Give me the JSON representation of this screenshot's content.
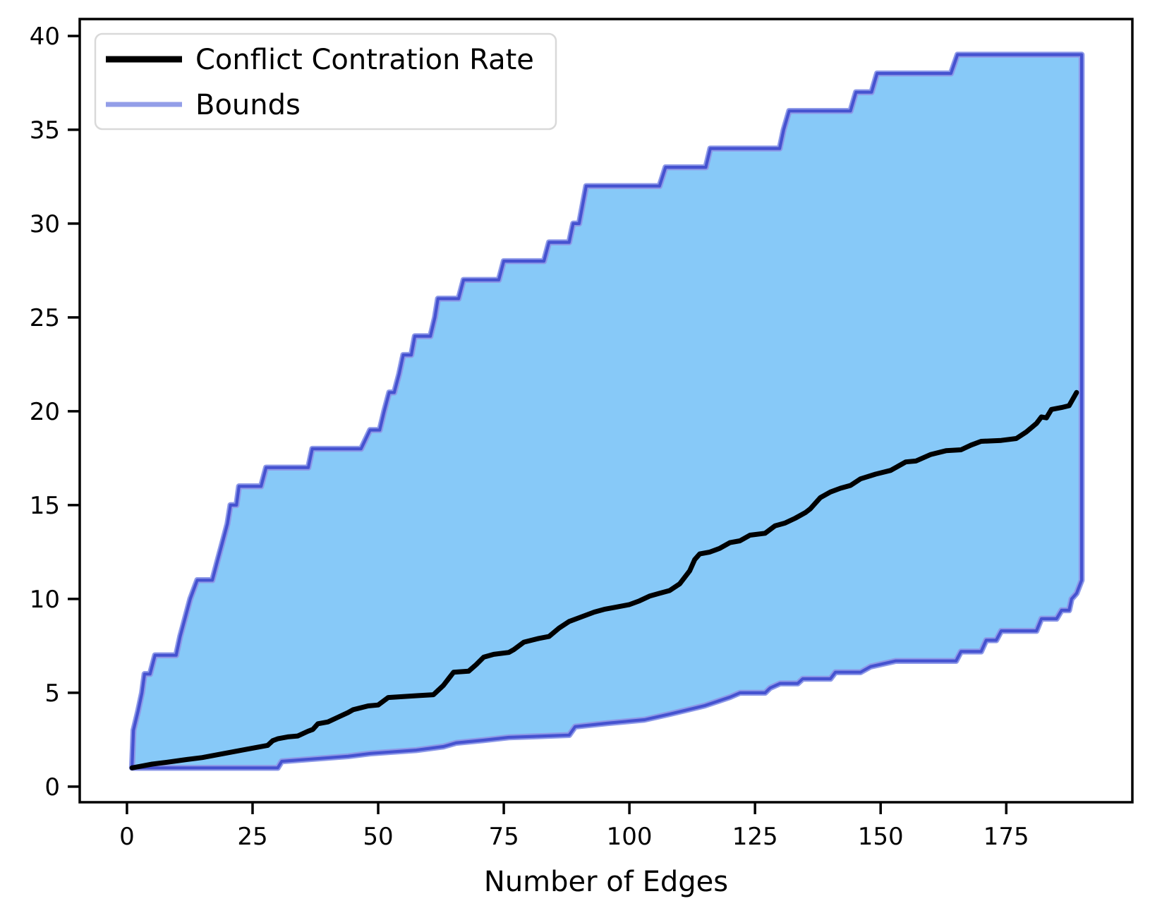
{
  "figure": {
    "background": "#ffffff"
  },
  "chart_data": {
    "type": "line",
    "title": "",
    "xlabel": "Number of Edges",
    "ylabel": "",
    "xlim": [
      -9.4,
      200.1
    ],
    "ylim": [
      -0.83,
      40.9
    ],
    "xticks": [
      0,
      25,
      50,
      75,
      100,
      125,
      150,
      175
    ],
    "yticks": [
      0,
      5,
      10,
      15,
      20,
      25,
      30,
      35,
      40
    ],
    "grid": false,
    "legend_position": "upper-left",
    "legend": [
      {
        "label": "Conflict Contration Rate",
        "color": "#000000"
      },
      {
        "label": "Bounds",
        "color": "#939ee8"
      }
    ],
    "colors": {
      "fill": "#87c9f8",
      "bounds_line": "#4552d0",
      "bounds_halo": "#8d99e8",
      "rate_line": "#000000",
      "axis": "#000000",
      "legend_border": "#d9d9d9"
    },
    "series": {
      "upper_bound": {
        "name": "Bounds (upper)",
        "points": [
          [
            1,
            1
          ],
          [
            1.3,
            3
          ],
          [
            2.2,
            4
          ],
          [
            3,
            5
          ],
          [
            3.5,
            6
          ],
          [
            4.6,
            6
          ],
          [
            5.6,
            7
          ],
          [
            9.8,
            7
          ],
          [
            10.6,
            8
          ],
          [
            11.6,
            9
          ],
          [
            12.6,
            10
          ],
          [
            14,
            11
          ],
          [
            17,
            11
          ],
          [
            18,
            12
          ],
          [
            19,
            13
          ],
          [
            20,
            14
          ],
          [
            20.6,
            15
          ],
          [
            21.8,
            15
          ],
          [
            22.3,
            16
          ],
          [
            26.7,
            16
          ],
          [
            27.7,
            17
          ],
          [
            36.1,
            17
          ],
          [
            36.9,
            18
          ],
          [
            46.6,
            18
          ],
          [
            48.4,
            19
          ],
          [
            50.3,
            19
          ],
          [
            51.2,
            20
          ],
          [
            52.2,
            21
          ],
          [
            53.2,
            21
          ],
          [
            54.2,
            22
          ],
          [
            55,
            23
          ],
          [
            56.6,
            23
          ],
          [
            57.3,
            24
          ],
          [
            60.4,
            24
          ],
          [
            61.3,
            25
          ],
          [
            61.9,
            26
          ],
          [
            66,
            26
          ],
          [
            67,
            27
          ],
          [
            74,
            27
          ],
          [
            75,
            28
          ],
          [
            83,
            28
          ],
          [
            84,
            29
          ],
          [
            88,
            29
          ],
          [
            88.8,
            30
          ],
          [
            90,
            30
          ],
          [
            90.7,
            31
          ],
          [
            91.4,
            32
          ],
          [
            106,
            32
          ],
          [
            107.2,
            33
          ],
          [
            115.2,
            33
          ],
          [
            116.1,
            34
          ],
          [
            129.9,
            34
          ],
          [
            130.7,
            35
          ],
          [
            131.8,
            36
          ],
          [
            144,
            36
          ],
          [
            145.1,
            37
          ],
          [
            148.2,
            37
          ],
          [
            149.3,
            38
          ],
          [
            164,
            38
          ],
          [
            165.3,
            39
          ],
          [
            190,
            39
          ],
          [
            190,
            11
          ]
        ]
      },
      "lower_bound": {
        "name": "Bounds (lower)",
        "points": [
          [
            1,
            1
          ],
          [
            30,
            1
          ],
          [
            30.8,
            1.35
          ],
          [
            44,
            1.62
          ],
          [
            48.5,
            1.77
          ],
          [
            57.6,
            1.95
          ],
          [
            63,
            2.14
          ],
          [
            65.5,
            2.33
          ],
          [
            71,
            2.48
          ],
          [
            76,
            2.63
          ],
          [
            88,
            2.75
          ],
          [
            89.2,
            3.2
          ],
          [
            95.5,
            3.38
          ],
          [
            103,
            3.57
          ],
          [
            108,
            3.87
          ],
          [
            111,
            4.06
          ],
          [
            115,
            4.32
          ],
          [
            120,
            4.77
          ],
          [
            122,
            5
          ],
          [
            127,
            5
          ],
          [
            128,
            5.26
          ],
          [
            130,
            5.5
          ],
          [
            133.5,
            5.5
          ],
          [
            134.5,
            5.75
          ],
          [
            140,
            5.75
          ],
          [
            141,
            6.1
          ],
          [
            146,
            6.1
          ],
          [
            148,
            6.4
          ],
          [
            153,
            6.7
          ],
          [
            165,
            6.7
          ],
          [
            166,
            7.2
          ],
          [
            170,
            7.2
          ],
          [
            171,
            7.8
          ],
          [
            173,
            7.8
          ],
          [
            174,
            8.3
          ],
          [
            181,
            8.3
          ],
          [
            182,
            8.95
          ],
          [
            185,
            8.95
          ],
          [
            186,
            9.4
          ],
          [
            187.5,
            9.4
          ],
          [
            188,
            10
          ],
          [
            189,
            10.3
          ],
          [
            190,
            11
          ]
        ]
      },
      "rate": {
        "name": "Conflict Contration Rate",
        "points": [
          [
            1,
            1
          ],
          [
            3,
            1.1
          ],
          [
            5,
            1.2
          ],
          [
            8,
            1.3
          ],
          [
            12,
            1.45
          ],
          [
            15,
            1.55
          ],
          [
            18,
            1.7
          ],
          [
            21,
            1.85
          ],
          [
            24,
            2
          ],
          [
            26,
            2.1
          ],
          [
            28,
            2.2
          ],
          [
            29,
            2.45
          ],
          [
            30,
            2.55
          ],
          [
            32,
            2.65
          ],
          [
            34,
            2.7
          ],
          [
            36,
            2.95
          ],
          [
            37,
            3.05
          ],
          [
            38,
            3.35
          ],
          [
            40,
            3.45
          ],
          [
            42,
            3.7
          ],
          [
            44,
            3.95
          ],
          [
            45,
            4.1
          ],
          [
            48,
            4.3
          ],
          [
            50,
            4.35
          ],
          [
            52,
            4.75
          ],
          [
            55,
            4.8
          ],
          [
            58,
            4.85
          ],
          [
            61,
            4.9
          ],
          [
            63,
            5.4
          ],
          [
            65,
            6.1
          ],
          [
            68,
            6.15
          ],
          [
            69.5,
            6.5
          ],
          [
            71,
            6.9
          ],
          [
            73,
            7.05
          ],
          [
            76,
            7.15
          ],
          [
            77,
            7.3
          ],
          [
            79,
            7.7
          ],
          [
            82,
            7.9
          ],
          [
            84,
            8
          ],
          [
            86,
            8.45
          ],
          [
            88,
            8.8
          ],
          [
            90,
            9
          ],
          [
            93,
            9.3
          ],
          [
            95,
            9.45
          ],
          [
            97,
            9.55
          ],
          [
            100,
            9.7
          ],
          [
            102,
            9.9
          ],
          [
            104,
            10.15
          ],
          [
            106,
            10.3
          ],
          [
            108,
            10.45
          ],
          [
            110,
            10.8
          ],
          [
            112,
            11.5
          ],
          [
            113,
            12.1
          ],
          [
            114,
            12.4
          ],
          [
            116,
            12.5
          ],
          [
            118,
            12.7
          ],
          [
            120,
            13
          ],
          [
            122,
            13.1
          ],
          [
            124,
            13.4
          ],
          [
            127,
            13.5
          ],
          [
            129,
            13.9
          ],
          [
            131,
            14.05
          ],
          [
            133,
            14.3
          ],
          [
            135,
            14.6
          ],
          [
            136,
            14.8
          ],
          [
            138,
            15.4
          ],
          [
            140,
            15.7
          ],
          [
            142,
            15.9
          ],
          [
            144,
            16.05
          ],
          [
            146,
            16.4
          ],
          [
            149,
            16.65
          ],
          [
            152,
            16.85
          ],
          [
            155,
            17.3
          ],
          [
            157,
            17.35
          ],
          [
            160,
            17.7
          ],
          [
            163,
            17.9
          ],
          [
            166,
            17.95
          ],
          [
            168,
            18.2
          ],
          [
            170,
            18.4
          ],
          [
            174,
            18.45
          ],
          [
            177,
            18.55
          ],
          [
            179,
            18.9
          ],
          [
            181,
            19.35
          ],
          [
            182,
            19.7
          ],
          [
            183,
            19.65
          ],
          [
            184,
            20.1
          ],
          [
            186,
            20.2
          ],
          [
            187.5,
            20.3
          ],
          [
            189,
            21
          ]
        ]
      }
    }
  }
}
